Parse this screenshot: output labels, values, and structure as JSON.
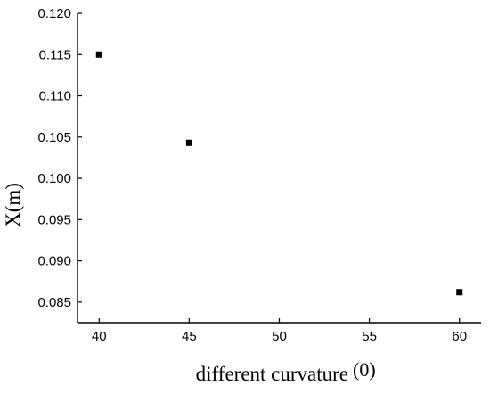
{
  "chart_data": {
    "type": "scatter",
    "title": "",
    "xlabel": "different curvature",
    "xlabel_unit": "(0)",
    "ylabel": "X(m)",
    "x_ticks": [
      "40",
      "45",
      "50",
      "55",
      "60"
    ],
    "y_ticks": [
      "0.085",
      "0.090",
      "0.095",
      "0.100",
      "0.105",
      "0.110",
      "0.115",
      "0.120"
    ],
    "xlim": [
      38.8,
      61.2
    ],
    "ylim": [
      0.0825,
      0.12
    ],
    "grid": false,
    "legend": "none",
    "marker": "square",
    "marker_color": "#000000",
    "series": [
      {
        "x": [
          40,
          45,
          60
        ],
        "y": [
          0.115,
          0.1043,
          0.0862
        ]
      }
    ]
  }
}
